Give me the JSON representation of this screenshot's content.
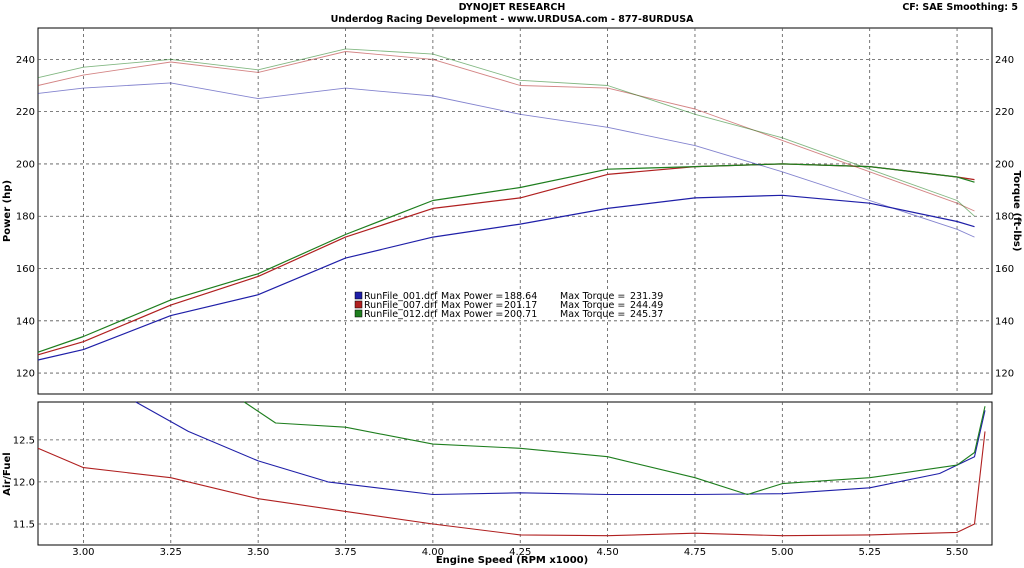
{
  "header": {
    "title": "DYNOJET RESEARCH",
    "subtitle": "Underdog Racing Development - www.URDUSA.com - 877-8URDUSA",
    "correction_info": "CF: SAE  Smoothing: 5"
  },
  "colors": {
    "run_001": "#1f1fa8",
    "run_007": "#b02020",
    "run_012": "#1e7e1e",
    "grid": "#555555"
  },
  "chart_data": [
    {
      "type": "line",
      "name": "power-torque",
      "xlabel": "Engine Speed (RPM x1000)",
      "ylabel": "Power (hp)",
      "y2label": "Torque (ft-lbs)",
      "xlim": [
        2.87,
        5.6
      ],
      "ylim": [
        112,
        252
      ],
      "y2lim": [
        112,
        252
      ],
      "x_ticks": [
        "3.00",
        "3.25",
        "3.50",
        "3.75",
        "4.00",
        "4.25",
        "4.50",
        "4.75",
        "5.00",
        "5.25",
        "5.50"
      ],
      "y_ticks": [
        "120",
        "140",
        "160",
        "180",
        "200",
        "220",
        "240"
      ],
      "y2_ticks": [
        "120",
        "140",
        "160",
        "180",
        "200",
        "220",
        "240"
      ],
      "grid": true,
      "legend": {
        "placement": "center",
        "entries": [
          {
            "run": "RunFile_001.drf",
            "max_power_label": "Max Power =",
            "max_power": "188.64",
            "max_torque_label": "Max Torque =",
            "max_torque": "231.39"
          },
          {
            "run": "RunFile_007.drf",
            "max_power_label": "Max Power =",
            "max_power": "201.17",
            "max_torque_label": "Max Torque =",
            "max_torque": "244.49"
          },
          {
            "run": "RunFile_012.drf",
            "max_power_label": "Max Power =",
            "max_power": "200.71",
            "max_torque_label": "Max Torque =",
            "max_torque": "245.37"
          }
        ]
      },
      "series": [
        {
          "quantity": "power",
          "run": "RunFile_001.drf",
          "x": [
            2.87,
            3.0,
            3.25,
            3.5,
            3.75,
            4.0,
            4.25,
            4.5,
            4.75,
            5.0,
            5.25,
            5.5,
            5.55
          ],
          "y": [
            125,
            129,
            142,
            150,
            164,
            172,
            177,
            183,
            187,
            188,
            185,
            178,
            176
          ]
        },
        {
          "quantity": "power",
          "run": "RunFile_007.drf",
          "x": [
            2.87,
            3.0,
            3.25,
            3.5,
            3.75,
            4.0,
            4.25,
            4.5,
            4.75,
            5.0,
            5.25,
            5.5,
            5.55
          ],
          "y": [
            127,
            132,
            146,
            157,
            172,
            183,
            187,
            196,
            199,
            200,
            199,
            195,
            194
          ]
        },
        {
          "quantity": "power",
          "run": "RunFile_012.drf",
          "x": [
            2.87,
            3.0,
            3.25,
            3.5,
            3.75,
            4.0,
            4.25,
            4.5,
            4.75,
            5.0,
            5.25,
            5.5,
            5.55
          ],
          "y": [
            128,
            134,
            148,
            158,
            173,
            186,
            191,
            198,
            199,
            200,
            199,
            195,
            193
          ]
        },
        {
          "quantity": "torque",
          "run": "RunFile_001.drf",
          "x": [
            2.87,
            3.0,
            3.25,
            3.5,
            3.75,
            4.0,
            4.25,
            4.5,
            4.75,
            5.0,
            5.25,
            5.5,
            5.55
          ],
          "y": [
            227,
            229,
            231,
            225,
            229,
            226,
            219,
            214,
            207,
            197,
            186,
            175,
            172
          ]
        },
        {
          "quantity": "torque",
          "run": "RunFile_007.drf",
          "x": [
            2.87,
            3.0,
            3.25,
            3.5,
            3.75,
            4.0,
            4.25,
            4.5,
            4.75,
            5.0,
            5.25,
            5.5,
            5.55
          ],
          "y": [
            230,
            234,
            239,
            235,
            243,
            240,
            230,
            229,
            221,
            209,
            197,
            185,
            182
          ]
        },
        {
          "quantity": "torque",
          "run": "RunFile_012.drf",
          "x": [
            2.87,
            3.0,
            3.25,
            3.5,
            3.75,
            4.0,
            4.25,
            4.5,
            4.75,
            5.0,
            5.25,
            5.5,
            5.55
          ],
          "y": [
            233,
            237,
            240,
            236,
            244,
            242,
            232,
            230,
            219,
            210,
            198,
            186,
            180
          ]
        }
      ]
    },
    {
      "type": "line",
      "name": "air-fuel",
      "xlabel": "Engine Speed (RPM x1000)",
      "ylabel": "Air/Fuel",
      "xlim": [
        2.87,
        5.6
      ],
      "ylim": [
        11.25,
        12.95
      ],
      "x_ticks": [
        "3.00",
        "3.25",
        "3.50",
        "3.75",
        "4.00",
        "4.25",
        "4.50",
        "4.75",
        "5.00",
        "5.25",
        "5.50"
      ],
      "y_ticks": [
        "11.5",
        "12.0",
        "12.5"
      ],
      "grid": true,
      "series": [
        {
          "run": "RunFile_001.drf",
          "x": [
            3.15,
            3.3,
            3.5,
            3.7,
            4.0,
            4.25,
            4.5,
            4.75,
            5.0,
            5.25,
            5.45,
            5.55,
            5.58
          ],
          "y": [
            12.95,
            12.6,
            12.25,
            12.0,
            11.85,
            11.87,
            11.85,
            11.85,
            11.86,
            11.93,
            12.1,
            12.3,
            12.85
          ]
        },
        {
          "run": "RunFile_007.drf",
          "x": [
            2.87,
            3.0,
            3.25,
            3.5,
            3.75,
            4.0,
            4.25,
            4.5,
            4.75,
            5.0,
            5.25,
            5.5,
            5.55,
            5.58
          ],
          "y": [
            12.4,
            12.17,
            12.05,
            11.8,
            11.65,
            11.5,
            11.37,
            11.36,
            11.39,
            11.36,
            11.37,
            11.4,
            11.5,
            12.6
          ]
        },
        {
          "run": "RunFile_012.drf",
          "x": [
            3.46,
            3.55,
            3.75,
            4.0,
            4.25,
            4.5,
            4.75,
            4.9,
            5.0,
            5.25,
            5.5,
            5.55,
            5.58
          ],
          "y": [
            12.95,
            12.7,
            12.65,
            12.45,
            12.4,
            12.3,
            12.05,
            11.85,
            11.98,
            12.05,
            12.2,
            12.35,
            12.9
          ]
        }
      ]
    }
  ]
}
